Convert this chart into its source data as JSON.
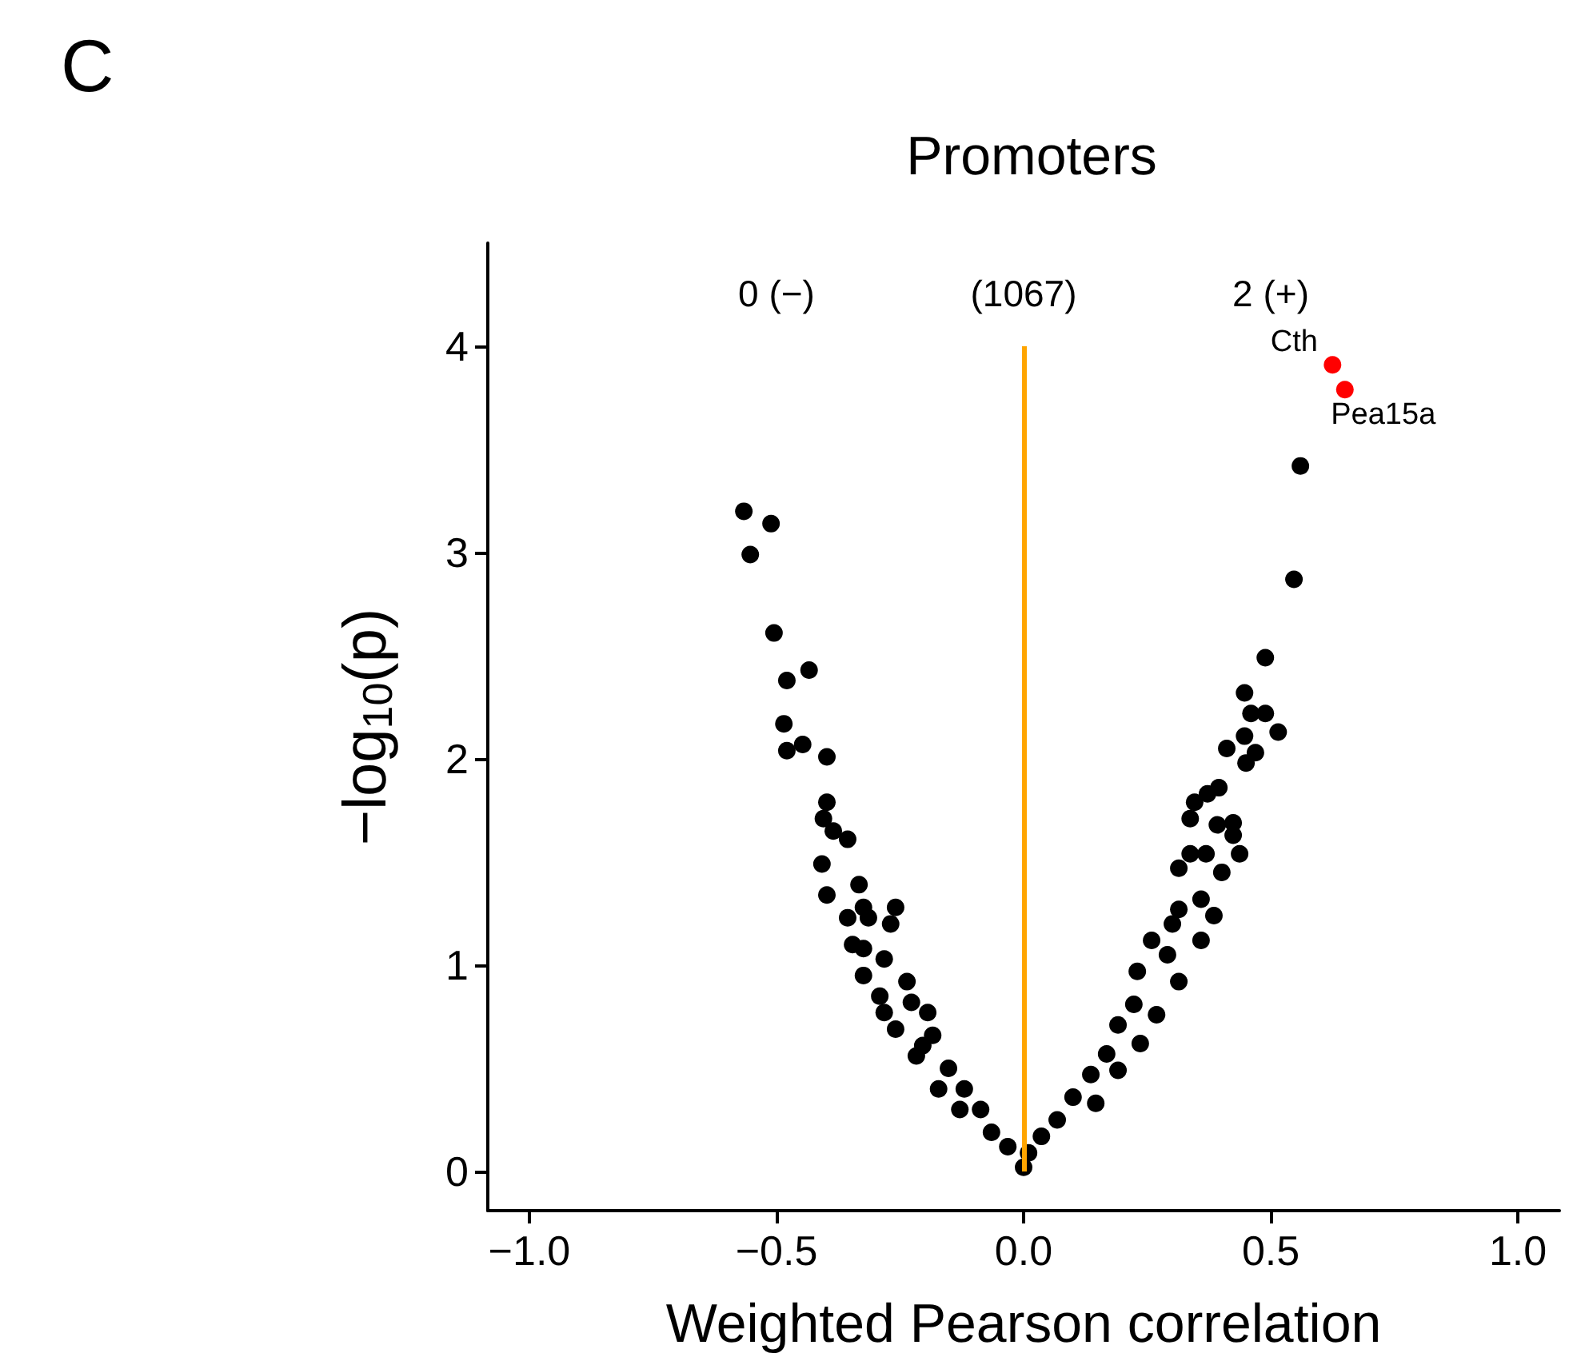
{
  "chart_data": {
    "type": "scatter",
    "title": "Promoters",
    "xlabel": "Weighted Pearson correlation",
    "ylabel": "−log$_{10}$(p)",
    "annotations": [
      "C",
      "0 (−)",
      "(1067)",
      "2 (+)",
      {
        "text": "Cth",
        "x": 0.625,
        "y": 3.91
      },
      {
        "text": "Pea15a",
        "x": 0.65,
        "y": 3.79
      }
    ],
    "xlim": [
      -1.084,
      1.084
    ],
    "ylim": [
      -0.19,
      4.5
    ],
    "xticks": [
      {
        "value": -1,
        "label": "−1.0"
      },
      {
        "value": -0.5,
        "label": "−0.5"
      },
      {
        "value": 0,
        "label": "0.0"
      },
      {
        "value": 0.5,
        "label": "0.5"
      },
      {
        "value": 1,
        "label": "1.0"
      }
    ],
    "yticks": [
      0,
      1,
      2,
      3,
      4
    ],
    "grid": false,
    "marker": "circle",
    "ref_lines": [
      {
        "axis": "x",
        "value": 0,
        "color": "#ffa500"
      }
    ],
    "series": [
      {
        "color": "#000000",
        "x": [
          -0.566,
          -0.511,
          -0.553,
          -0.505,
          -0.434,
          -0.479,
          -0.485,
          -0.479,
          -0.447,
          -0.398,
          -0.398,
          -0.405,
          -0.385,
          -0.356,
          -0.408,
          -0.398,
          -0.259,
          -0.346,
          -0.324,
          -0.282,
          -0.291,
          -0.236,
          -0.282,
          -0.194,
          -0.259,
          -0.184,
          -0.217,
          -0.152,
          -0.172,
          -0.12,
          -0.129,
          -0.087,
          -0.065,
          -0.032,
          0,
          -0.314,
          -0.333,
          -0.324,
          -0.269,
          -0.356,
          -0.324,
          -0.227,
          -0.204,
          0.56,
          0.547,
          0.489,
          0.447,
          0.46,
          0.489,
          0.515,
          0.411,
          0.447,
          0.45,
          0.469,
          0.395,
          0.372,
          0.346,
          0.337,
          0.392,
          0.424,
          0.424,
          0.437,
          0.337,
          0.369,
          0.314,
          0.401,
          0.359,
          0.385,
          0.314,
          0.301,
          0.359,
          0.259,
          0.23,
          0.291,
          0.314,
          0.223,
          0.269,
          0.191,
          0.236,
          0.168,
          0.136,
          0.191,
          0.1,
          0.146,
          0.068,
          0.036,
          0.01
        ],
        "values": [
          3.2,
          3.14,
          2.99,
          2.61,
          2.43,
          2.38,
          2.17,
          2.04,
          2.07,
          2.01,
          1.79,
          1.71,
          1.65,
          1.61,
          1.49,
          1.34,
          1.28,
          1.1,
          0.95,
          1.03,
          0.85,
          0.92,
          0.77,
          0.77,
          0.69,
          0.66,
          0.56,
          0.5,
          0.4,
          0.4,
          0.3,
          0.3,
          0.19,
          0.12,
          0.02,
          1.23,
          1.39,
          1.28,
          1.2,
          1.23,
          1.08,
          0.82,
          0.61,
          3.42,
          2.87,
          2.49,
          2.32,
          2.22,
          2.22,
          2.13,
          2.05,
          2.11,
          1.98,
          2.03,
          1.86,
          1.83,
          1.79,
          1.71,
          1.68,
          1.69,
          1.63,
          1.54,
          1.54,
          1.54,
          1.47,
          1.45,
          1.32,
          1.24,
          1.27,
          1.2,
          1.12,
          1.12,
          0.97,
          1.05,
          0.92,
          0.81,
          0.76,
          0.71,
          0.62,
          0.57,
          0.47,
          0.49,
          0.36,
          0.33,
          0.25,
          0.17,
          0.09
        ]
      },
      {
        "color": "#ff0000",
        "x": [
          0.625,
          0.65
        ],
        "values": [
          3.91,
          3.79
        ]
      }
    ]
  }
}
